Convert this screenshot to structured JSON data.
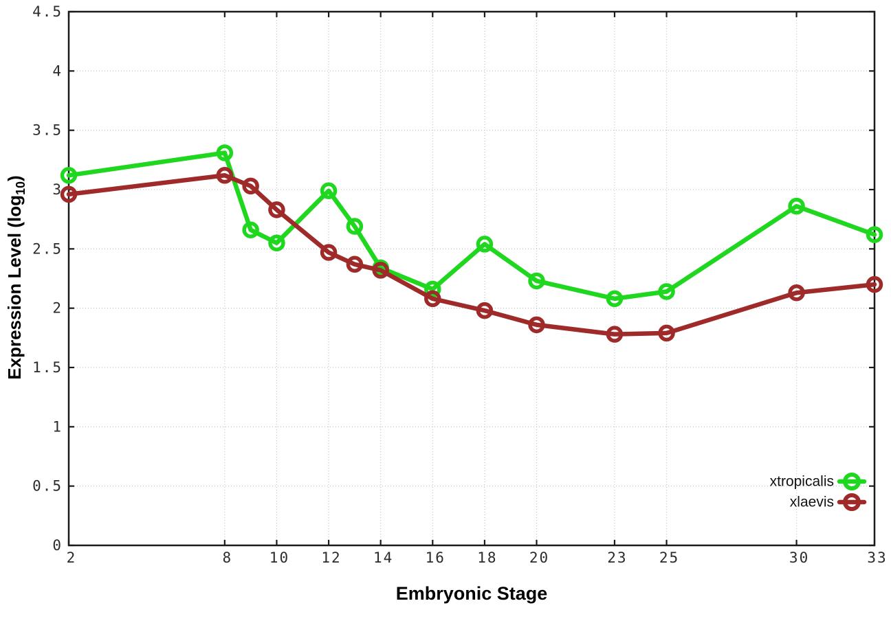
{
  "chart_data": {
    "type": "line",
    "title": "",
    "xlabel": "Embryonic Stage",
    "ylabel": {
      "main": "Expression Level (log",
      "sub": "10",
      "end": ")"
    },
    "x": [
      2,
      8,
      9,
      10,
      12,
      13,
      14,
      16,
      18,
      20,
      23,
      25,
      30,
      33
    ],
    "series": [
      {
        "name": "xtropicalis",
        "color": "#1ed71e",
        "values": [
          3.12,
          3.31,
          2.66,
          2.55,
          2.99,
          2.69,
          2.34,
          2.16,
          2.54,
          2.23,
          2.08,
          2.14,
          2.86,
          2.62
        ]
      },
      {
        "name": "xlaevis",
        "color": "#9e2a2a",
        "values": [
          2.96,
          3.12,
          3.03,
          2.83,
          2.47,
          2.37,
          2.32,
          2.08,
          1.98,
          1.86,
          1.78,
          1.79,
          2.13,
          2.2
        ]
      }
    ],
    "xlim": [
      2,
      33
    ],
    "ylim": [
      0,
      4.5
    ],
    "xticks": {
      "values": [
        2,
        8,
        10,
        12,
        14,
        16,
        18,
        20,
        23,
        25,
        30,
        33
      ],
      "labels": [
        "2",
        "8",
        "10",
        "12",
        "14",
        "16",
        "18",
        "20",
        "23",
        "25",
        "30",
        "33"
      ]
    },
    "yticks": {
      "values": [
        0,
        0.5,
        1,
        1.5,
        2,
        2.5,
        3,
        3.5,
        4,
        4.5
      ],
      "labels": [
        "0",
        "0.5",
        "1",
        "1.5",
        "2",
        "2.5",
        "3",
        "3.5",
        "4",
        "4.5"
      ]
    },
    "grid": true,
    "legend_position": "bottom-right",
    "marker": "open-circle",
    "line_style": "solid"
  },
  "colors": {
    "background": "#ffffff",
    "grid": "#b8b8b8",
    "axis": "#1a1a1a",
    "tick_label": "#2b2b2b",
    "title": "#000000"
  }
}
